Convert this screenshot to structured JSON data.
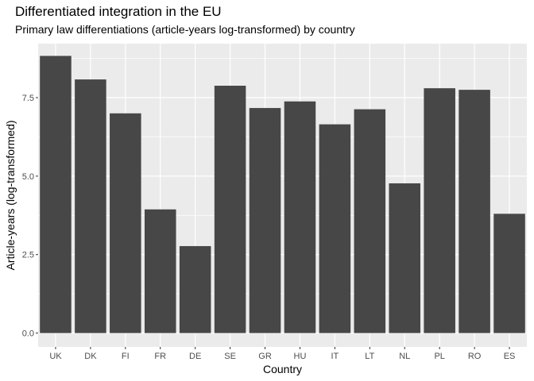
{
  "chart_data": {
    "type": "bar",
    "title": "Differentiated integration in the EU",
    "subtitle": "Primary law differentiations (article-years log-transformed) by country",
    "xlabel": "Country",
    "ylabel": "Article-years (log-transformed)",
    "categories": [
      "UK",
      "DK",
      "FI",
      "FR",
      "DE",
      "SE",
      "GR",
      "HU",
      "IT",
      "LT",
      "NL",
      "PL",
      "RO",
      "ES"
    ],
    "values": [
      8.83,
      8.08,
      7.0,
      3.94,
      2.77,
      7.88,
      7.17,
      7.38,
      6.65,
      7.13,
      4.77,
      7.8,
      7.75,
      3.8
    ],
    "ylim": [
      -0.44,
      9.22
    ],
    "yticks": [
      0.0,
      2.5,
      5.0,
      7.5
    ],
    "ytick_labels": [
      "0.0",
      "2.5",
      "5.0",
      "7.5"
    ],
    "grid": true,
    "colors": {
      "panel": "#ebebeb",
      "grid": "#ffffff",
      "bar": "#474747"
    }
  }
}
